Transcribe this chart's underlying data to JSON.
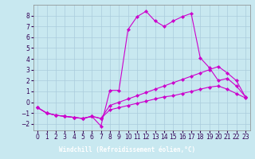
{
  "xlabel": "Windchill (Refroidissement éolien,°C)",
  "bg_color": "#c8e8f0",
  "label_bg_color": "#6600aa",
  "grid_color": "#b0d8e0",
  "line_color": "#cc00cc",
  "xlim": [
    -0.5,
    23.5
  ],
  "ylim": [
    -2.6,
    9.0
  ],
  "xticks": [
    0,
    1,
    2,
    3,
    4,
    5,
    6,
    7,
    8,
    9,
    10,
    11,
    12,
    13,
    14,
    15,
    16,
    17,
    18,
    19,
    20,
    21,
    22,
    23
  ],
  "yticks": [
    -2,
    -1,
    0,
    1,
    2,
    3,
    4,
    5,
    6,
    7,
    8
  ],
  "line1_x": [
    0,
    1,
    2,
    3,
    4,
    5,
    6,
    7,
    8,
    9,
    10,
    11,
    12,
    13,
    14,
    15,
    16,
    17,
    18,
    19,
    20,
    21,
    22,
    23
  ],
  "line1_y": [
    -0.5,
    -1.0,
    -1.2,
    -1.3,
    -1.4,
    -1.5,
    -1.3,
    -2.2,
    1.1,
    1.1,
    6.7,
    7.9,
    8.4,
    7.5,
    7.0,
    7.5,
    7.9,
    8.2,
    4.1,
    3.2,
    2.0,
    2.2,
    1.5,
    0.5
  ],
  "line2_x": [
    0,
    1,
    2,
    3,
    4,
    5,
    6,
    7,
    8,
    9,
    10,
    11,
    12,
    13,
    14,
    15,
    16,
    17,
    18,
    19,
    20,
    21,
    22,
    23
  ],
  "line2_y": [
    -0.5,
    -1.0,
    -1.2,
    -1.3,
    -1.4,
    -1.5,
    -1.3,
    -1.5,
    -0.3,
    0.0,
    0.3,
    0.6,
    0.9,
    1.2,
    1.5,
    1.8,
    2.1,
    2.4,
    2.7,
    3.0,
    3.3,
    2.7,
    2.0,
    0.5
  ],
  "line3_x": [
    0,
    1,
    2,
    3,
    4,
    5,
    6,
    7,
    8,
    9,
    10,
    11,
    12,
    13,
    14,
    15,
    16,
    17,
    18,
    19,
    20,
    21,
    22,
    23
  ],
  "line3_y": [
    -0.5,
    -1.0,
    -1.2,
    -1.3,
    -1.4,
    -1.5,
    -1.3,
    -1.5,
    -0.7,
    -0.5,
    -0.3,
    -0.1,
    0.1,
    0.3,
    0.5,
    0.6,
    0.8,
    1.0,
    1.2,
    1.4,
    1.5,
    1.2,
    0.8,
    0.4
  ],
  "marker": "D",
  "markersize": 2.2,
  "linewidth": 0.8,
  "tick_fontsize": 5.5,
  "xlabel_fontsize": 5.5
}
